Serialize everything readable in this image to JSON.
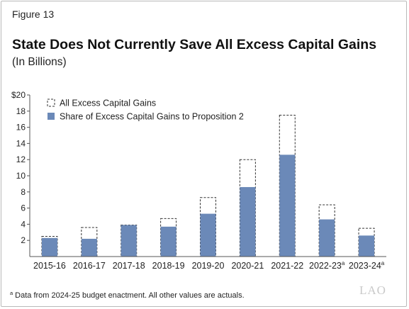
{
  "figure_label": "Figure 13",
  "footnote": {
    "marker": "a",
    "text": "Data from 2024-25 budget enactment. All other values are actuals."
  },
  "logo_text": "LAO",
  "colors": {
    "bar_fill": "#6b89b8",
    "outline": "#333333",
    "axis": "#555555"
  },
  "chart_data": {
    "type": "bar",
    "title": "State Does Not Currently Save All Excess Capital Gains",
    "subtitle": "(In Billions)",
    "xlabel": "",
    "ylabel": "",
    "categories": [
      "2015-16",
      "2016-17",
      "2017-18",
      "2018-19",
      "2019-20",
      "2020-21",
      "2021-22",
      "2022-23",
      "2023-24"
    ],
    "category_superscripts": [
      "",
      "",
      "",
      "",
      "",
      "",
      "",
      "a",
      "a"
    ],
    "series": [
      {
        "name": "All Excess Capital Gains",
        "style": "dashed-outline",
        "values": [
          2.5,
          3.6,
          3.9,
          4.7,
          7.3,
          12.0,
          17.5,
          6.4,
          3.5
        ]
      },
      {
        "name": "Share of Excess Capital Gains to Proposition 2",
        "style": "filled",
        "values": [
          2.3,
          2.2,
          3.9,
          3.7,
          5.3,
          8.6,
          12.6,
          4.6,
          2.6
        ]
      }
    ],
    "ylim": [
      0,
      20
    ],
    "yticks": [
      2,
      4,
      6,
      8,
      10,
      12,
      14,
      16,
      18,
      20
    ],
    "ytick_labels": [
      "2",
      "4",
      "6",
      "8",
      "10",
      "12",
      "14",
      "16",
      "18",
      "$20"
    ],
    "grid": false,
    "legend_position": "top-left"
  }
}
